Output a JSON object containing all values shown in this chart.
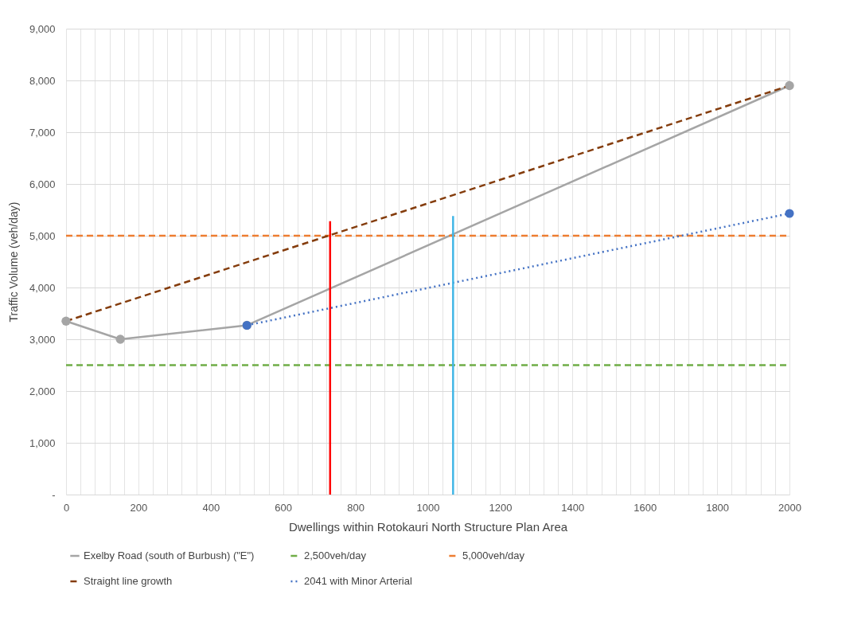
{
  "chart_data": {
    "type": "line",
    "xlabel": "Dwellings within Rotokauri North Structure Plan Area",
    "ylabel": "Traffic Volume (veh/day)",
    "xlim": [
      0,
      2000
    ],
    "xticks": [
      0,
      {
        "value": 40,
        "label": null
      },
      {
        "value": 80,
        "label": null
      },
      {
        "value": 120,
        "label": null
      },
      {
        "value": 160,
        "label": null
      },
      200,
      {
        "value": 240,
        "label": null
      },
      {
        "value": 280,
        "label": null
      },
      {
        "value": 320,
        "label": null
      },
      {
        "value": 360,
        "label": null
      },
      400,
      {
        "value": 440,
        "label": null
      },
      {
        "value": 480,
        "label": null
      },
      {
        "value": 520,
        "label": null
      },
      {
        "value": 560,
        "label": null
      },
      600,
      {
        "value": 640,
        "label": null
      },
      {
        "value": 680,
        "label": null
      },
      {
        "value": 720,
        "label": null
      },
      {
        "value": 760,
        "label": null
      },
      800,
      {
        "value": 840,
        "label": null
      },
      {
        "value": 880,
        "label": null
      },
      {
        "value": 920,
        "label": null
      },
      {
        "value": 960,
        "label": null
      },
      1000,
      {
        "value": 1040,
        "label": null
      },
      {
        "value": 1080,
        "label": null
      },
      {
        "value": 1120,
        "label": null
      },
      {
        "value": 1160,
        "label": null
      },
      1200,
      {
        "value": 1240,
        "label": null
      },
      {
        "value": 1280,
        "label": null
      },
      {
        "value": 1320,
        "label": null
      },
      {
        "value": 1360,
        "label": null
      },
      1400,
      {
        "value": 1440,
        "label": null
      },
      {
        "value": 1480,
        "label": null
      },
      {
        "value": 1520,
        "label": null
      },
      {
        "value": 1560,
        "label": null
      },
      1600,
      {
        "value": 1640,
        "label": null
      },
      {
        "value": 1680,
        "label": null
      },
      {
        "value": 1720,
        "label": null
      },
      {
        "value": 1760,
        "label": null
      },
      1800,
      {
        "value": 1840,
        "label": null
      },
      {
        "value": 1880,
        "label": null
      },
      {
        "value": 1920,
        "label": null
      },
      {
        "value": 1960,
        "label": null
      },
      2000
    ],
    "ylim": [
      0,
      9000
    ],
    "yticks": [
      {
        "value": 0,
        "label": "-"
      },
      {
        "value": 1000,
        "label": "1,000"
      },
      {
        "value": 2000,
        "label": "2,000"
      },
      {
        "value": 3000,
        "label": "3,000"
      },
      {
        "value": 4000,
        "label": "4,000"
      },
      {
        "value": 5000,
        "label": "5,000"
      },
      {
        "value": 6000,
        "label": "6,000"
      },
      {
        "value": 7000,
        "label": "7,000"
      },
      {
        "value": 8000,
        "label": "8,000"
      },
      {
        "value": 9000,
        "label": "9,000"
      }
    ],
    "grid": true,
    "legend": "bottom",
    "series": [
      {
        "name": "Exelby Road (south of Burbush) (\"E\")",
        "color": "#a5a5a5",
        "x": [
          0,
          150,
          500,
          2000
        ],
        "values": [
          3350,
          3000,
          3270,
          7900
        ],
        "marker": "circle",
        "line_style": "solid"
      },
      {
        "name": "2,500veh/day",
        "color": "#70ad47",
        "x": [
          0,
          2000
        ],
        "values": [
          2500,
          2500
        ],
        "line_style": "dashed"
      },
      {
        "name": "5,000veh/day",
        "color": "#ed7d31",
        "x": [
          0,
          2000
        ],
        "values": [
          5000,
          5000
        ],
        "line_style": "dashed"
      },
      {
        "name": "Straight line growth",
        "color": "#843c0c",
        "x": [
          0,
          2000
        ],
        "values": [
          3350,
          7900
        ],
        "line_style": "dashed"
      },
      {
        "name": "2041 with Minor Arterial",
        "color": "#4472c4",
        "x": [
          500,
          2000
        ],
        "values": [
          3270,
          5430
        ],
        "marker": "circle",
        "line_style": "dotted"
      },
      {
        "color": "#ff0000",
        "x": [
          730,
          730
        ],
        "values": [
          0,
          5280
        ],
        "line_style": "solid"
      },
      {
        "color": "#41b6e6",
        "x": [
          1070,
          1070
        ],
        "values": [
          0,
          5380
        ],
        "line_style": "solid"
      }
    ]
  }
}
